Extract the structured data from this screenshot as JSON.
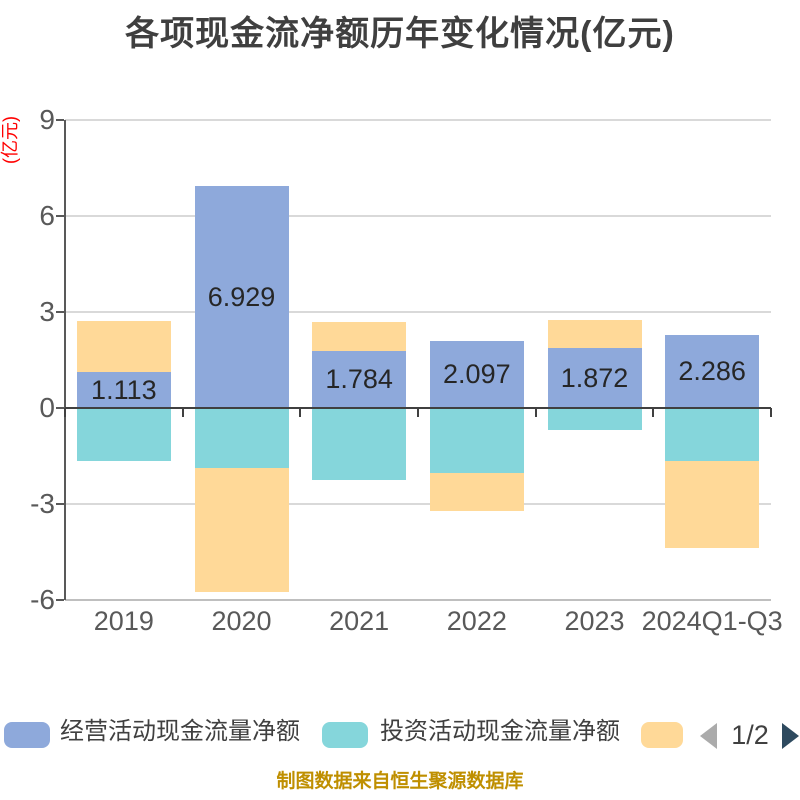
{
  "title": "各项现金流净额历年变化情况(亿元)",
  "y_axis_unit": "(亿元)",
  "footer": "制图数据来自恒生聚源数据库",
  "legend": {
    "items": [
      {
        "label": "经营活动现金流量净额",
        "color": "#8EA9DB"
      },
      {
        "label": "投资活动现金流量净额",
        "color": "#85D6DB"
      },
      {
        "label": "",
        "color": "#FFD998"
      }
    ],
    "pagination": {
      "text": "1/2",
      "prev_color": "#ABABAB",
      "next_color": "#2E4A5F"
    }
  },
  "chart_data": {
    "type": "bar",
    "stacked": true,
    "title": "各项现金流净额历年变化情况(亿元)",
    "categories": [
      "2019",
      "2020",
      "2021",
      "2022",
      "2023",
      "2024Q1-Q3"
    ],
    "series": [
      {
        "name": "经营活动现金流量净额",
        "color": "#8EA9DB",
        "values": [
          1.113,
          6.929,
          1.784,
          2.097,
          1.872,
          2.286
        ],
        "labels": [
          "1.113",
          "6.929",
          "1.784",
          "2.097",
          "1.872",
          "2.286"
        ]
      },
      {
        "name": "投资活动现金流量净额",
        "color": "#85D6DB",
        "values": [
          -1.66,
          -1.88,
          -2.25,
          -2.02,
          -0.69,
          -1.67
        ]
      },
      {
        "name": "",
        "color": "#FFD998",
        "values": [
          1.62,
          -3.86,
          0.89,
          -1.19,
          0.88,
          -2.7
        ]
      }
    ],
    "y_ticks": [
      9,
      6,
      3,
      0,
      -3,
      -6
    ],
    "ylim": [
      -6,
      9
    ],
    "grid": true,
    "legend_position": "bottom"
  }
}
